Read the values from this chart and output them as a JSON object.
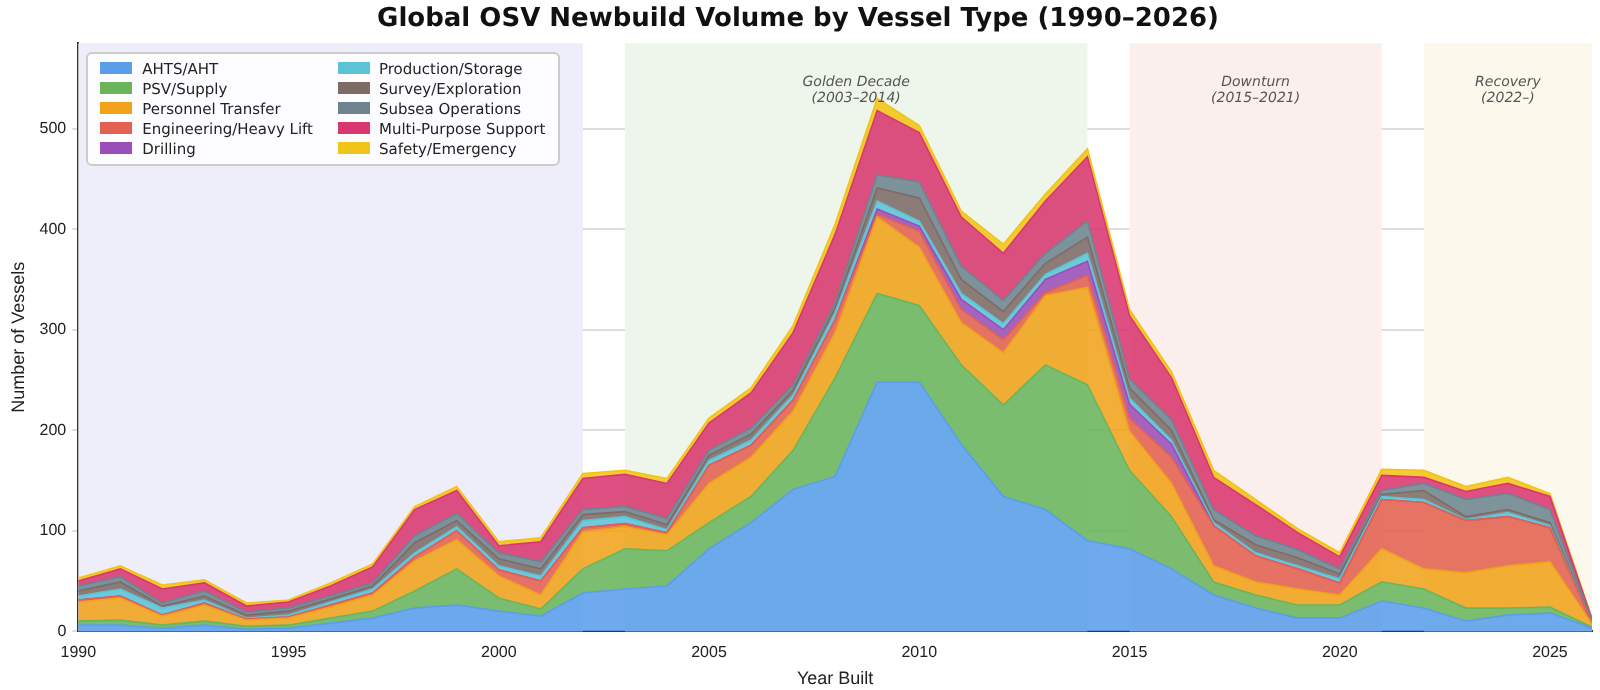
{
  "chart_data": {
    "type": "area",
    "stacked": true,
    "title": "Global OSV Newbuild Volume by Vessel Type (1990–2026)",
    "xlabel": "Year Built",
    "ylabel": "Number of Vessels",
    "x": [
      1990,
      1991,
      1992,
      1993,
      1994,
      1995,
      1996,
      1997,
      1998,
      1999,
      2000,
      2001,
      2002,
      2003,
      2004,
      2005,
      2006,
      2007,
      2008,
      2009,
      2010,
      2011,
      2012,
      2013,
      2014,
      2015,
      2016,
      2017,
      2018,
      2019,
      2020,
      2021,
      2022,
      2023,
      2024,
      2025,
      2026
    ],
    "xlim": [
      1990,
      2026
    ],
    "xticks": [
      1990,
      1995,
      2000,
      2005,
      2010,
      2015,
      2020,
      2025
    ],
    "ylim": [
      0,
      585
    ],
    "yticks": [
      0,
      100,
      200,
      300,
      400,
      500
    ],
    "grid": "y",
    "legend": "top left",
    "bands": [
      {
        "axis": "x",
        "from": 1990,
        "to": 2002,
        "color": "#eeeefb"
      },
      {
        "axis": "x",
        "from": 2003,
        "to": 2014,
        "label": "Golden Decade\n(2003–2014)",
        "color": "#eef5ea"
      },
      {
        "axis": "x",
        "from": 2015,
        "to": 2021,
        "label": "Downturn\n(2015–2021)",
        "color": "#fbefee"
      },
      {
        "axis": "x",
        "from": 2022,
        "to": 2026,
        "label": "Recovery\n(2022–)",
        "color": "#fdf8ec"
      }
    ],
    "series": [
      {
        "name": "AHTS/AHT",
        "color": "#5a9eea",
        "values": [
          6,
          6,
          3,
          6,
          2,
          3,
          8,
          13,
          23,
          26,
          20,
          15,
          38,
          42,
          45,
          82,
          108,
          141,
          154,
          248,
          248,
          186,
          134,
          121,
          90,
          82,
          62,
          36,
          23,
          13,
          13,
          30,
          23,
          10,
          16,
          18,
          3
        ]
      },
      {
        "name": "PSV/Supply",
        "color": "#6ab55c",
        "values": [
          4,
          5,
          3,
          4,
          3,
          3,
          5,
          7,
          17,
          36,
          13,
          7,
          24,
          40,
          35,
          26,
          26,
          39,
          98,
          88,
          76,
          79,
          91,
          144,
          155,
          78,
          52,
          13,
          13,
          13,
          13,
          19,
          19,
          13,
          7,
          6,
          1
        ]
      },
      {
        "name": "Personnel Transfer",
        "color": "#f0a31a",
        "values": [
          19,
          22,
          9,
          16,
          6,
          7,
          11,
          16,
          30,
          29,
          22,
          14,
          37,
          22,
          16,
          39,
          39,
          39,
          45,
          76,
          58,
          42,
          52,
          69,
          97,
          39,
          33,
          16,
          13,
          16,
          10,
          33,
          20,
          35,
          42,
          45,
          3
        ]
      },
      {
        "name": "Engineering/Heavy Lift",
        "color": "#e26150",
        "values": [
          2,
          2,
          1,
          2,
          1,
          1,
          2,
          2,
          4,
          9,
          6,
          14,
          4,
          3,
          2,
          18,
          12,
          11,
          13,
          3,
          16,
          13,
          13,
          3,
          12,
          13,
          26,
          40,
          26,
          20,
          12,
          49,
          66,
          52,
          49,
          34,
          1
        ]
      },
      {
        "name": "Drilling",
        "color": "#9a4fb8",
        "values": [
          0,
          0,
          0,
          0,
          0,
          0,
          0,
          0,
          0,
          0,
          0,
          0,
          0,
          0,
          0,
          0,
          0,
          0,
          0,
          5,
          5,
          10,
          10,
          13,
          14,
          14,
          13,
          0,
          0,
          0,
          0,
          0,
          0,
          0,
          0,
          0,
          0
        ]
      },
      {
        "name": "Production/Storage",
        "color": "#5cc3d6",
        "values": [
          4,
          7,
          7,
          3,
          1,
          2,
          3,
          4,
          4,
          4,
          4,
          5,
          7,
          7,
          3,
          5,
          5,
          5,
          7,
          8,
          5,
          6,
          6,
          5,
          8,
          6,
          4,
          3,
          3,
          3,
          4,
          3,
          3,
          1,
          4,
          2,
          1
        ]
      },
      {
        "name": "Survey/Exploration",
        "color": "#7d6b66",
        "values": [
          5,
          7,
          2,
          4,
          3,
          4,
          3,
          3,
          10,
          6,
          7,
          7,
          6,
          5,
          5,
          5,
          6,
          5,
          5,
          13,
          23,
          14,
          12,
          11,
          16,
          10,
          10,
          3,
          8,
          8,
          5,
          2,
          9,
          3,
          3,
          3,
          1
        ]
      },
      {
        "name": "Subsea Operations",
        "color": "#6d8490",
        "values": [
          5,
          5,
          3,
          5,
          3,
          3,
          3,
          3,
          7,
          7,
          6,
          7,
          5,
          5,
          6,
          5,
          6,
          5,
          5,
          13,
          16,
          13,
          11,
          10,
          16,
          9,
          10,
          10,
          9,
          8,
          5,
          4,
          7,
          17,
          16,
          13,
          1
        ]
      },
      {
        "name": "Multi-Purpose Support",
        "color": "#d8386f",
        "values": [
          5,
          8,
          14,
          8,
          6,
          6,
          10,
          16,
          26,
          23,
          7,
          20,
          31,
          32,
          35,
          27,
          35,
          52,
          68,
          64,
          49,
          49,
          47,
          52,
          64,
          63,
          42,
          32,
          31,
          17,
          12,
          15,
          6,
          8,
          10,
          13,
          1
        ]
      },
      {
        "name": "Safety/Emergency",
        "color": "#f2c418",
        "values": [
          3,
          3,
          4,
          3,
          3,
          2,
          3,
          3,
          3,
          4,
          4,
          4,
          5,
          4,
          5,
          5,
          5,
          7,
          10,
          12,
          7,
          6,
          9,
          7,
          8,
          6,
          6,
          7,
          5,
          4,
          4,
          6,
          7,
          5,
          6,
          3,
          1
        ]
      }
    ]
  }
}
